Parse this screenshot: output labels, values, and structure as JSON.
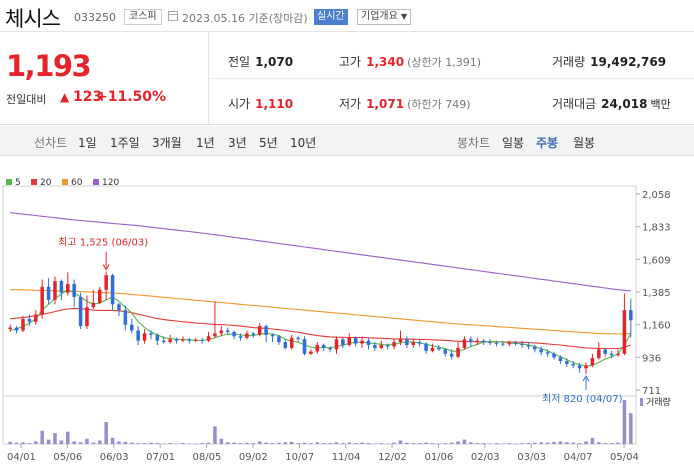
{
  "header": {
    "stock_name": "체시스",
    "stock_code": "033250",
    "market": "코스피",
    "date": "2023.05.16 기준(장마감)",
    "realtime_btn": "실시간",
    "overview_btn": "기업개요"
  },
  "quote": {
    "price": "1,193",
    "change_label": "전일대비",
    "change_arrow": "▲",
    "change_value": "123",
    "change_pct": "+11.50%"
  },
  "stats": {
    "prev_close": {
      "label": "전일",
      "value": "1,070"
    },
    "high": {
      "label": "고가",
      "value": "1,340",
      "sub": "(상한가 1,391)"
    },
    "volume": {
      "label": "거래량",
      "value": "19,492,769"
    },
    "open": {
      "label": "시가",
      "value": "1,110"
    },
    "low": {
      "label": "저가",
      "value": "1,071",
      "sub": "(하한가 749)"
    },
    "turnover": {
      "label": "거래대금",
      "value": "24,018",
      "unit": "백만"
    }
  },
  "tabs": {
    "line_label": "선차트",
    "line_ranges": [
      "1일",
      "1주일",
      "3개월",
      "1년",
      "3년",
      "5년",
      "10년"
    ],
    "candle_label": "봉차트",
    "candle_ranges": [
      "일봉",
      "주봉",
      "월봉"
    ],
    "active_candle": "주봉"
  },
  "colors": {
    "up": "#e5232b",
    "down": "#2f6fd6",
    "ma5": "#52b94a",
    "ma20": "#e23b3b",
    "ma60": "#f0962d",
    "ma120": "#9b5fc9",
    "volume": "#9c8ccd"
  },
  "chart_data": {
    "type": "candlestick",
    "legend": [
      "5",
      "20",
      "60",
      "120"
    ],
    "y_ticks": [
      2058,
      1833,
      1609,
      1385,
      1160,
      936,
      711
    ],
    "ylim": [
      711,
      2058
    ],
    "x_ticks": [
      "04/01",
      "05/06",
      "06/03",
      "07/01",
      "08/05",
      "09/02",
      "10/07",
      "11/04",
      "12/02",
      "01/06",
      "02/03",
      "03/03",
      "04/07",
      "05/04"
    ],
    "annotations": {
      "high": "최고 1,525 (06/03)",
      "low": "최저 820 (04/07)"
    },
    "volume_label": "거래량",
    "candles": [
      [
        1130,
        1140,
        1160,
        1110
      ],
      [
        1140,
        1120,
        1150,
        1100
      ],
      [
        1120,
        1200,
        1220,
        1110
      ],
      [
        1200,
        1180,
        1230,
        1150
      ],
      [
        1180,
        1230,
        1260,
        1160
      ],
      [
        1230,
        1420,
        1470,
        1200
      ],
      [
        1420,
        1330,
        1480,
        1300
      ],
      [
        1330,
        1460,
        1490,
        1300
      ],
      [
        1460,
        1380,
        1470,
        1330
      ],
      [
        1380,
        1440,
        1520,
        1360
      ],
      [
        1440,
        1350,
        1470,
        1280
      ],
      [
        1350,
        1150,
        1380,
        1130
      ],
      [
        1150,
        1280,
        1360,
        1130
      ],
      [
        1280,
        1310,
        1400,
        1270
      ],
      [
        1310,
        1400,
        1420,
        1300
      ],
      [
        1400,
        1500,
        1525,
        1330
      ],
      [
        1500,
        1300,
        1510,
        1260
      ],
      [
        1300,
        1260,
        1310,
        1220
      ],
      [
        1260,
        1160,
        1290,
        1120
      ],
      [
        1160,
        1120,
        1200,
        1100
      ],
      [
        1120,
        1050,
        1150,
        1020
      ],
      [
        1050,
        1100,
        1130,
        1030
      ],
      [
        1100,
        1090,
        1120,
        1060
      ],
      [
        1090,
        1050,
        1100,
        1020
      ],
      [
        1050,
        1040,
        1080,
        1030
      ],
      [
        1040,
        1060,
        1090,
        1030
      ],
      [
        1060,
        1050,
        1070,
        1030
      ],
      [
        1050,
        1060,
        1080,
        1040
      ],
      [
        1060,
        1050,
        1070,
        1030
      ],
      [
        1050,
        1055,
        1070,
        1040
      ],
      [
        1055,
        1050,
        1070,
        1030
      ],
      [
        1050,
        1080,
        1110,
        1040
      ],
      [
        1080,
        1100,
        1320,
        1070
      ],
      [
        1100,
        1120,
        1150,
        1080
      ],
      [
        1120,
        1110,
        1140,
        1090
      ],
      [
        1110,
        1080,
        1120,
        1060
      ],
      [
        1080,
        1070,
        1100,
        1050
      ],
      [
        1070,
        1100,
        1120,
        1060
      ],
      [
        1100,
        1090,
        1110,
        1070
      ],
      [
        1090,
        1150,
        1170,
        1080
      ],
      [
        1150,
        1090,
        1160,
        1040
      ],
      [
        1090,
        1080,
        1100,
        1040
      ],
      [
        1080,
        1040,
        1090,
        1020
      ],
      [
        1040,
        1000,
        1060,
        990
      ],
      [
        1000,
        1070,
        1090,
        990
      ],
      [
        1070,
        1060,
        1080,
        1040
      ],
      [
        1060,
        960,
        1080,
        950
      ],
      [
        960,
        975,
        990,
        950
      ],
      [
        975,
        1020,
        1040,
        960
      ],
      [
        1020,
        1000,
        1030,
        980
      ],
      [
        1000,
        990,
        1010,
        970
      ],
      [
        990,
        1060,
        1080,
        960
      ],
      [
        1060,
        1020,
        1070,
        1000
      ],
      [
        1020,
        1070,
        1100,
        1010
      ],
      [
        1070,
        1030,
        1080,
        1010
      ],
      [
        1030,
        1050,
        1080,
        1000
      ],
      [
        1050,
        1020,
        1070,
        990
      ],
      [
        1020,
        1000,
        1040,
        980
      ],
      [
        1000,
        1020,
        1050,
        990
      ],
      [
        1020,
        1010,
        1030,
        990
      ],
      [
        1010,
        1040,
        1060,
        990
      ],
      [
        1040,
        1060,
        1120,
        1020
      ],
      [
        1060,
        1020,
        1080,
        1000
      ],
      [
        1020,
        1040,
        1060,
        1000
      ],
      [
        1040,
        1030,
        1060,
        1010
      ],
      [
        1030,
        980,
        1040,
        960
      ],
      [
        980,
        1000,
        1030,
        970
      ],
      [
        1000,
        990,
        1020,
        980
      ],
      [
        990,
        960,
        1000,
        940
      ],
      [
        960,
        940,
        990,
        920
      ],
      [
        940,
        1000,
        1040,
        930
      ],
      [
        1000,
        1060,
        1080,
        990
      ],
      [
        1060,
        1040,
        1080,
        1010
      ],
      [
        1040,
        1050,
        1070,
        1020
      ],
      [
        1050,
        1040,
        1060,
        1020
      ],
      [
        1040,
        1035,
        1060,
        1020
      ],
      [
        1035,
        1030,
        1050,
        1010
      ],
      [
        1030,
        1025,
        1050,
        1010
      ],
      [
        1025,
        1035,
        1050,
        1010
      ],
      [
        1035,
        1030,
        1050,
        1015
      ],
      [
        1030,
        1020,
        1050,
        1000
      ],
      [
        1020,
        1010,
        1040,
        990
      ],
      [
        1010,
        990,
        1020,
        970
      ],
      [
        990,
        970,
        1010,
        950
      ],
      [
        970,
        960,
        990,
        940
      ],
      [
        960,
        935,
        970,
        920
      ],
      [
        935,
        910,
        950,
        890
      ],
      [
        910,
        890,
        930,
        870
      ],
      [
        890,
        880,
        910,
        860
      ],
      [
        880,
        860,
        900,
        830
      ],
      [
        860,
        880,
        900,
        820
      ],
      [
        880,
        930,
        960,
        870
      ],
      [
        930,
        990,
        1040,
        920
      ],
      [
        990,
        960,
        1000,
        940
      ],
      [
        960,
        950,
        980,
        930
      ],
      [
        950,
        960,
        990,
        940
      ],
      [
        960,
        1260,
        1375,
        950
      ],
      [
        1260,
        1190,
        1340,
        1071
      ]
    ],
    "ma5": [
      1120,
      1130,
      1150,
      1170,
      1200,
      1260,
      1300,
      1340,
      1370,
      1400,
      1380,
      1350,
      1320,
      1300,
      1310,
      1330,
      1350,
      1320,
      1280,
      1240,
      1180,
      1140,
      1110,
      1090,
      1070,
      1065,
      1060,
      1058,
      1055,
      1053,
      1052,
      1058,
      1070,
      1085,
      1095,
      1095,
      1090,
      1085,
      1085,
      1095,
      1100,
      1095,
      1085,
      1060,
      1045,
      1040,
      1020,
      1005,
      1000,
      1005,
      1000,
      1010,
      1020,
      1030,
      1040,
      1040,
      1035,
      1030,
      1025,
      1020,
      1025,
      1035,
      1040,
      1040,
      1035,
      1025,
      1015,
      1005,
      995,
      980,
      975,
      990,
      1010,
      1025,
      1040,
      1045,
      1045,
      1040,
      1035,
      1032,
      1028,
      1020,
      1010,
      995,
      980,
      960,
      940,
      920,
      900,
      885,
      875,
      880,
      900,
      925,
      940,
      960,
      1020,
      1100
    ],
    "ma20": [
      1200,
      1205,
      1210,
      1215,
      1222,
      1230,
      1240,
      1250,
      1260,
      1268,
      1272,
      1270,
      1265,
      1260,
      1258,
      1258,
      1258,
      1255,
      1250,
      1242,
      1232,
      1222,
      1212,
      1202,
      1195,
      1190,
      1185,
      1180,
      1176,
      1172,
      1168,
      1165,
      1162,
      1160,
      1158,
      1155,
      1150,
      1145,
      1140,
      1137,
      1134,
      1130,
      1126,
      1120,
      1114,
      1108,
      1100,
      1092,
      1085,
      1080,
      1076,
      1074,
      1073,
      1072,
      1072,
      1071,
      1070,
      1068,
      1066,
      1064,
      1062,
      1062,
      1061,
      1060,
      1059,
      1058,
      1056,
      1054,
      1052,
      1049,
      1046,
      1045,
      1044,
      1043,
      1042,
      1042,
      1042,
      1041,
      1040,
      1040,
      1039,
      1037,
      1035,
      1032,
      1028,
      1024,
      1020,
      1015,
      1010,
      1005,
      1000,
      998,
      997,
      996,
      996,
      996,
      1005,
      1020
    ],
    "ma60": [
      1400,
      1400,
      1400,
      1398,
      1396,
      1395,
      1394,
      1393,
      1392,
      1391,
      1390,
      1388,
      1386,
      1384,
      1382,
      1380,
      1378,
      1375,
      1372,
      1368,
      1364,
      1360,
      1356,
      1352,
      1348,
      1344,
      1340,
      1336,
      1332,
      1328,
      1324,
      1320,
      1316,
      1312,
      1308,
      1304,
      1300,
      1296,
      1292,
      1288,
      1284,
      1280,
      1276,
      1272,
      1268,
      1264,
      1260,
      1256,
      1252,
      1248,
      1244,
      1240,
      1236,
      1232,
      1228,
      1224,
      1220,
      1216,
      1212,
      1208,
      1204,
      1200,
      1196,
      1192,
      1188,
      1184,
      1180,
      1176,
      1172,
      1168,
      1165,
      1162,
      1159,
      1156,
      1153,
      1150,
      1147,
      1144,
      1141,
      1138,
      1135,
      1132,
      1129,
      1126,
      1123,
      1120,
      1117,
      1114,
      1111,
      1108,
      1105,
      1102,
      1100,
      1098,
      1097,
      1096,
      1097,
      1100
    ],
    "ma120": [
      1930,
      1925,
      1920,
      1915,
      1910,
      1905,
      1900,
      1895,
      1890,
      1885,
      1880,
      1876,
      1872,
      1868,
      1864,
      1860,
      1856,
      1852,
      1848,
      1844,
      1840,
      1835,
      1830,
      1825,
      1820,
      1815,
      1810,
      1805,
      1800,
      1795,
      1790,
      1784,
      1778,
      1772,
      1766,
      1760,
      1754,
      1748,
      1742,
      1736,
      1730,
      1724,
      1718,
      1712,
      1706,
      1700,
      1694,
      1688,
      1682,
      1676,
      1670,
      1664,
      1658,
      1652,
      1646,
      1640,
      1634,
      1628,
      1622,
      1616,
      1610,
      1604,
      1598,
      1592,
      1586,
      1580,
      1574,
      1568,
      1562,
      1556,
      1550,
      1544,
      1538,
      1532,
      1526,
      1520,
      1514,
      1508,
      1502,
      1496,
      1490,
      1484,
      1478,
      1472,
      1466,
      1460,
      1454,
      1448,
      1442,
      1436,
      1430,
      1424,
      1418,
      1412,
      1406,
      1400,
      1396,
      1392
    ],
    "volume": [
      5,
      3,
      4,
      2,
      6,
      30,
      10,
      25,
      8,
      28,
      6,
      4,
      12,
      3,
      8,
      50,
      14,
      6,
      5,
      3,
      2,
      2,
      3,
      2,
      1,
      2,
      1,
      2,
      1,
      1,
      2,
      3,
      40,
      12,
      4,
      3,
      2,
      3,
      2,
      6,
      3,
      2,
      3,
      4,
      5,
      2,
      3,
      2,
      4,
      2,
      2,
      4,
      2,
      3,
      2,
      3,
      2,
      1,
      2,
      1,
      3,
      8,
      3,
      2,
      2,
      3,
      2,
      1,
      2,
      3,
      6,
      10,
      4,
      2,
      2,
      1,
      2,
      1,
      2,
      1,
      2,
      2,
      3,
      4,
      3,
      5,
      6,
      4,
      3,
      2,
      6,
      14,
      4,
      2,
      2,
      3,
      100,
      70
    ]
  }
}
